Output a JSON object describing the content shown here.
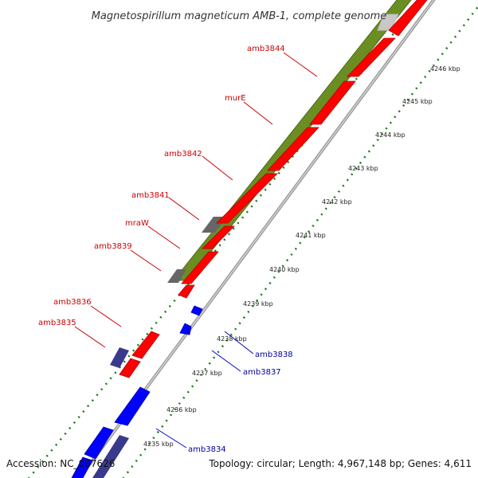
{
  "title": "Magnetospirillum magneticum AMB-1, complete genome",
  "footer": {
    "accession": "Accession: NC_007626",
    "summary": "Topology: circular; Length: 4,967,148 bp; Genes: 4,611"
  },
  "colors": {
    "forward_gene": "#ff0000",
    "reverse_gene": "#0000ff",
    "operon": "#6b8e23",
    "other_feature": "#555555",
    "reverse_operon": "#3a3a8c",
    "backbone": "#8a8a8a",
    "ruler_dots": "#1a7a1a",
    "forward_label": "#cc0000",
    "reverse_label": "#000099"
  },
  "ruler": {
    "unit": "kbp",
    "ticks": [
      "4235 kbp",
      "4236 kbp",
      "4237 kbp",
      "4238 kbp",
      "4239 kbp",
      "4240 kbp",
      "4241 kbp",
      "4242 kbp",
      "4243 kbp",
      "4244 kbp",
      "4245 kbp",
      "4246 kbp"
    ]
  },
  "forward_labels": [
    "amb3844",
    "murE",
    "amb3842",
    "amb3841",
    "mraW",
    "amb3839",
    "amb3836",
    "amb3835"
  ],
  "reverse_labels": [
    "amb3838",
    "amb3837",
    "amb3834"
  ]
}
